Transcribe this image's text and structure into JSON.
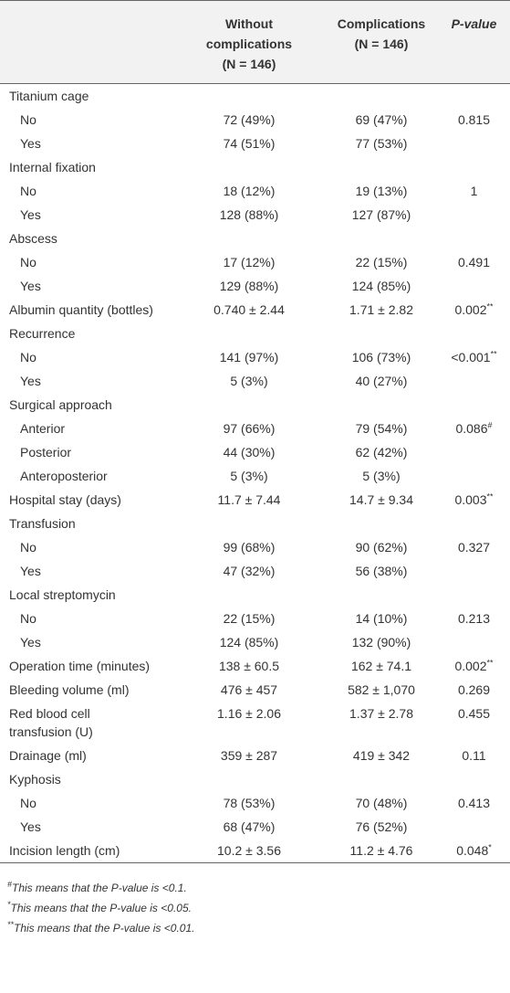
{
  "header": {
    "columns": [
      {
        "label": "Without complications",
        "n": "(N = 146)"
      },
      {
        "label": "Complications",
        "n": "(N = 146)"
      },
      {
        "label": "P-value"
      }
    ]
  },
  "table": {
    "rows": [
      {
        "label": "Titanium cage",
        "subrows": [
          {
            "label": "No",
            "cells": [
              "72 (49%)",
              "69 (47%)",
              "0.815"
            ]
          },
          {
            "label": "Yes",
            "cells": [
              "74 (51%)",
              "77 (53%)"
            ]
          }
        ]
      },
      {
        "label": "Internal fixation",
        "subrows": [
          {
            "label": "No",
            "cells": [
              "18 (12%)",
              "19 (13%)",
              "1"
            ]
          },
          {
            "label": "Yes",
            "cells": [
              "128 (88%)",
              "127 (87%)"
            ]
          }
        ]
      },
      {
        "label": "Abscess",
        "subrows": [
          {
            "label": "No",
            "cells": [
              "17 (12%)",
              "22 (15%)",
              "0.491"
            ]
          },
          {
            "label": "Yes",
            "cells": [
              "129 (88%)",
              "124 (85%)"
            ]
          }
        ]
      },
      {
        "label": "Albumin quantity (bottles)",
        "cells": [
          "0.740 ± 2.44",
          "1.71 ± 2.82",
          "0.002"
        ],
        "note": "**"
      },
      {
        "label": "Recurrence",
        "subrows": [
          {
            "label": "No",
            "cells": [
              "141 (97%)",
              "106 (73%)",
              "<0.001"
            ],
            "note": "**"
          },
          {
            "label": "Yes",
            "cells": [
              "5 (3%)",
              "40 (27%)"
            ]
          }
        ]
      },
      {
        "label": "Surgical approach",
        "subrows": [
          {
            "label": "Anterior",
            "cells": [
              "97 (66%)",
              "79 (54%)",
              "0.086"
            ],
            "note": "#"
          },
          {
            "label": "Posterior",
            "cells": [
              "44 (30%)",
              "62 (42%)"
            ]
          },
          {
            "label": "Anteroposterior",
            "cells": [
              "5 (3%)",
              "5 (3%)"
            ]
          }
        ]
      },
      {
        "label": "Hospital stay (days)",
        "cells": [
          "11.7 ± 7.44",
          "14.7 ± 9.34",
          "0.003"
        ],
        "note": "**"
      },
      {
        "label": "Transfusion",
        "subrows": [
          {
            "label": "No",
            "cells": [
              "99 (68%)",
              "90 (62%)",
              "0.327"
            ]
          },
          {
            "label": "Yes",
            "cells": [
              "47 (32%)",
              "56 (38%)"
            ]
          }
        ]
      },
      {
        "label": "Local streptomycin",
        "subrows": [
          {
            "label": "No",
            "cells": [
              "22 (15%)",
              "14 (10%)",
              "0.213"
            ]
          },
          {
            "label": "Yes",
            "cells": [
              "124 (85%)",
              "132 (90%)"
            ]
          }
        ]
      },
      {
        "label": "Operation time (minutes)",
        "cells": [
          "138 ± 60.5",
          "162 ± 74.1",
          "0.002"
        ],
        "note": "**"
      },
      {
        "label": "Bleeding volume (ml)",
        "cells": [
          "476 ± 457",
          "582 ± 1,070",
          "0.269"
        ]
      },
      {
        "label": "Red blood cell transfusion (U)",
        "cells": [
          "1.16 ± 2.06",
          "1.37 ± 2.78",
          "0.455"
        ]
      },
      {
        "label": "Drainage (ml)",
        "cells": [
          "359 ± 287",
          "419 ± 342",
          "0.11"
        ]
      },
      {
        "label": "Kyphosis",
        "subrows": [
          {
            "label": "No",
            "cells": [
              "78 (53%)",
              "70 (48%)",
              "0.413"
            ]
          },
          {
            "label": "Yes",
            "cells": [
              "68 (47%)",
              "76 (52%)"
            ]
          }
        ]
      },
      {
        "label": "Incision length (cm)",
        "cells": [
          "10.2 ± 3.56",
          "11.2 ± 4.76",
          "0.048"
        ],
        "note": "*"
      }
    ]
  },
  "footnotes": [
    {
      "mark": "#",
      "text": "This means that the P-value is <0.1."
    },
    {
      "mark": "*",
      "text": "This means that the P-value is <0.05."
    },
    {
      "mark": "**",
      "text": "This means that the P-value is <0.01."
    }
  ]
}
